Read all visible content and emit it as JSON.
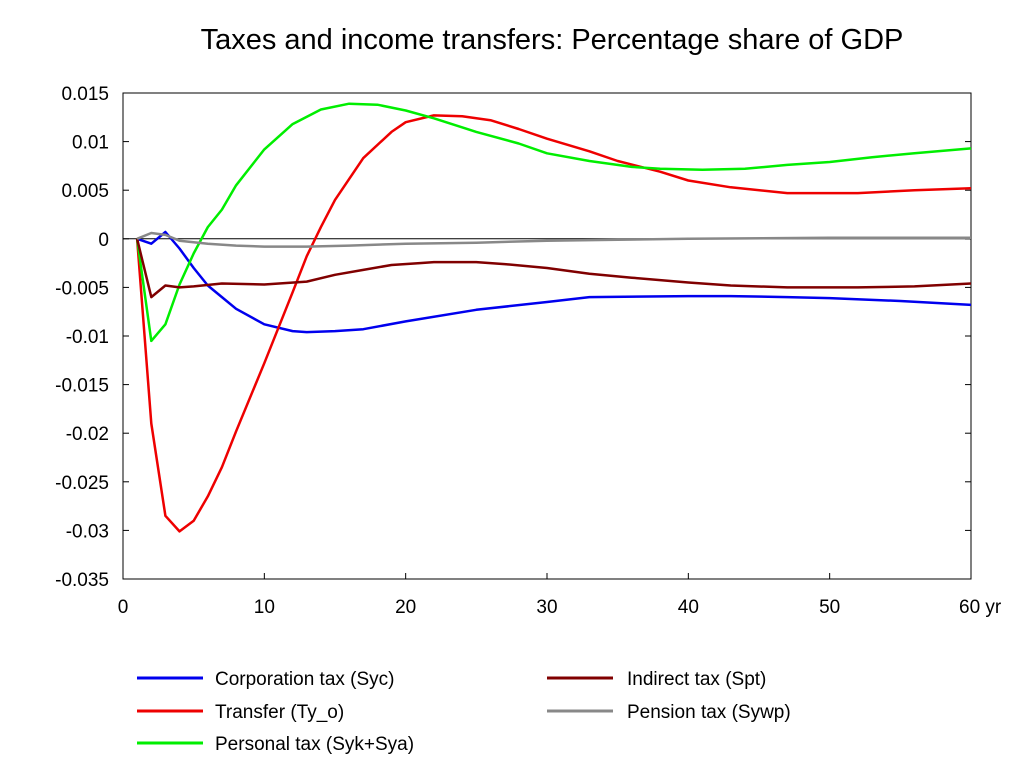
{
  "chart_data": {
    "type": "line",
    "title": "Taxes and income transfers: Percentage share of GDP",
    "xlabel": "",
    "ylabel": "",
    "xlim": [
      0,
      60
    ],
    "ylim": [
      -0.035,
      0.015
    ],
    "x_tick_labels": [
      "0",
      "10",
      "20",
      "30",
      "40",
      "50",
      "60 yr"
    ],
    "x_ticks": [
      0,
      10,
      20,
      30,
      40,
      50,
      60
    ],
    "y_tick_labels": [
      "0.015",
      "0.01",
      "0.005",
      "0",
      "-0.005",
      "-0.01",
      "-0.015",
      "-0.02",
      "-0.025",
      "-0.03",
      "-0.035"
    ],
    "y_ticks": [
      0.015,
      0.01,
      0.005,
      0,
      -0.005,
      -0.01,
      -0.015,
      -0.02,
      -0.025,
      -0.03,
      -0.035
    ],
    "grid": false,
    "zero_line": true,
    "legend_position": "bottom",
    "series": [
      {
        "name": "Corporation tax (Syc)",
        "color": "#0000ee",
        "points": [
          [
            1,
            0
          ],
          [
            2,
            -0.0005
          ],
          [
            3,
            0.0007
          ],
          [
            4,
            -0.001
          ],
          [
            5,
            -0.003
          ],
          [
            6,
            -0.0048
          ],
          [
            7,
            -0.006
          ],
          [
            8,
            -0.0072
          ],
          [
            10,
            -0.0088
          ],
          [
            12,
            -0.0095
          ],
          [
            13,
            -0.0096
          ],
          [
            15,
            -0.0095
          ],
          [
            17,
            -0.0093
          ],
          [
            20,
            -0.0085
          ],
          [
            25,
            -0.0073
          ],
          [
            30,
            -0.0065
          ],
          [
            33,
            -0.006
          ],
          [
            40,
            -0.0059
          ],
          [
            43,
            -0.0059
          ],
          [
            47,
            -0.006
          ],
          [
            50,
            -0.0061
          ],
          [
            55,
            -0.0064
          ],
          [
            60,
            -0.0068
          ]
        ]
      },
      {
        "name": "Transfer (Ty_o)",
        "color": "#ee0000",
        "points": [
          [
            1,
            0
          ],
          [
            2,
            -0.019
          ],
          [
            3,
            -0.0285
          ],
          [
            4,
            -0.0301
          ],
          [
            5,
            -0.029
          ],
          [
            6,
            -0.0265
          ],
          [
            7,
            -0.0235
          ],
          [
            8,
            -0.0198
          ],
          [
            10,
            -0.0128
          ],
          [
            12,
            -0.0055
          ],
          [
            13,
            -0.0018
          ],
          [
            14,
            0.0012
          ],
          [
            15,
            0.004
          ],
          [
            17,
            0.0083
          ],
          [
            19,
            0.011
          ],
          [
            20,
            0.012
          ],
          [
            22,
            0.0127
          ],
          [
            24,
            0.0126
          ],
          [
            26,
            0.0122
          ],
          [
            28,
            0.0113
          ],
          [
            30,
            0.0103
          ],
          [
            33,
            0.009
          ],
          [
            35,
            0.008
          ],
          [
            38,
            0.0069
          ],
          [
            40,
            0.006
          ],
          [
            43,
            0.0053
          ],
          [
            47,
            0.0047
          ],
          [
            52,
            0.0047
          ],
          [
            56,
            0.005
          ],
          [
            60,
            0.0052
          ]
        ]
      },
      {
        "name": "Personal tax (Syk+Sya)",
        "color": "#00ee00",
        "points": [
          [
            1,
            0
          ],
          [
            2,
            -0.0105
          ],
          [
            3,
            -0.0088
          ],
          [
            4,
            -0.0047
          ],
          [
            5,
            -0.0015
          ],
          [
            6,
            0.0012
          ],
          [
            7,
            0.003
          ],
          [
            8,
            0.0055
          ],
          [
            10,
            0.0092
          ],
          [
            12,
            0.0118
          ],
          [
            14,
            0.0133
          ],
          [
            16,
            0.0139
          ],
          [
            18,
            0.0138
          ],
          [
            20,
            0.0132
          ],
          [
            22,
            0.0124
          ],
          [
            25,
            0.011
          ],
          [
            28,
            0.0098
          ],
          [
            30,
            0.0088
          ],
          [
            33,
            0.008
          ],
          [
            36,
            0.0074
          ],
          [
            38,
            0.0072
          ],
          [
            41,
            0.0071
          ],
          [
            44,
            0.0072
          ],
          [
            47,
            0.0076
          ],
          [
            50,
            0.0079
          ],
          [
            53,
            0.0084
          ],
          [
            56,
            0.0088
          ],
          [
            60,
            0.0093
          ]
        ]
      },
      {
        "name": "Indirect tax (Spt)",
        "color": "#800000",
        "points": [
          [
            1,
            0
          ],
          [
            2,
            -0.006
          ],
          [
            3,
            -0.0048
          ],
          [
            4,
            -0.005
          ],
          [
            5,
            -0.0049
          ],
          [
            7,
            -0.0046
          ],
          [
            10,
            -0.0047
          ],
          [
            13,
            -0.0044
          ],
          [
            15,
            -0.0037
          ],
          [
            17,
            -0.0032
          ],
          [
            19,
            -0.0027
          ],
          [
            21,
            -0.0025
          ],
          [
            22,
            -0.0024
          ],
          [
            25,
            -0.0024
          ],
          [
            27,
            -0.0026
          ],
          [
            30,
            -0.003
          ],
          [
            33,
            -0.0036
          ],
          [
            36,
            -0.004
          ],
          [
            40,
            -0.0045
          ],
          [
            43,
            -0.0048
          ],
          [
            47,
            -0.005
          ],
          [
            52,
            -0.005
          ],
          [
            56,
            -0.0049
          ],
          [
            60,
            -0.0046
          ]
        ]
      },
      {
        "name": "Pension tax (Sywp)",
        "color": "#888888",
        "points": [
          [
            1,
            0
          ],
          [
            2,
            0.0006
          ],
          [
            3,
            0.0004
          ],
          [
            4,
            -0.0002
          ],
          [
            6,
            -0.0005
          ],
          [
            8,
            -0.0007
          ],
          [
            10,
            -0.0008
          ],
          [
            13,
            -0.0008
          ],
          [
            16,
            -0.0007
          ],
          [
            20,
            -0.0005
          ],
          [
            25,
            -0.0004
          ],
          [
            30,
            -0.0002
          ],
          [
            35,
            -0.0001
          ],
          [
            40,
            0
          ],
          [
            50,
            0.0001
          ],
          [
            60,
            0.0001
          ]
        ]
      }
    ]
  }
}
